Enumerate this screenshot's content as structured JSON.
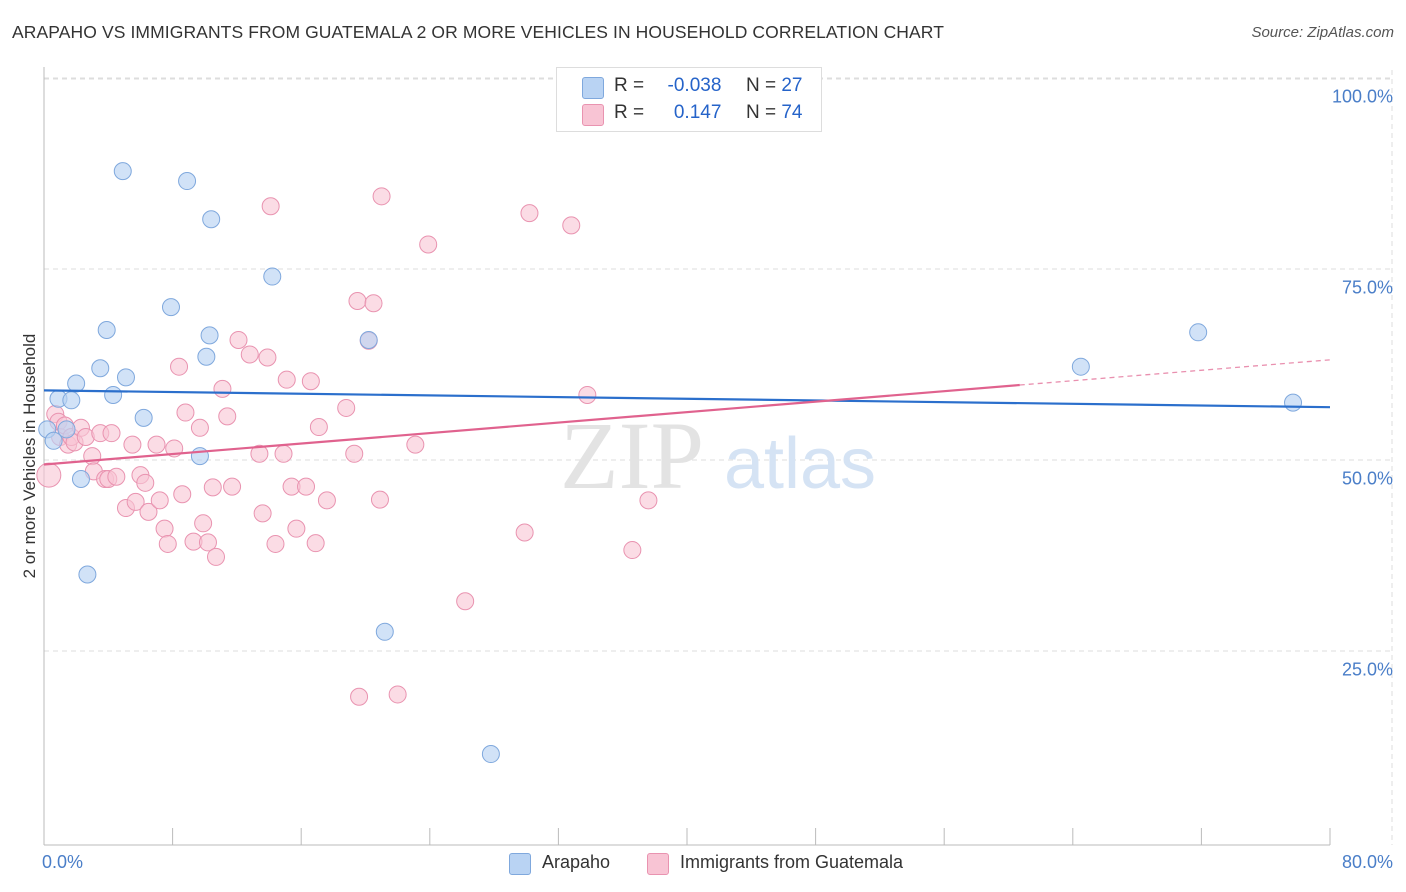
{
  "header": {
    "title": "ARAPAHO VS IMMIGRANTS FROM GUATEMALA 2 OR MORE VEHICLES IN HOUSEHOLD CORRELATION CHART",
    "source": "Source: ZipAtlas.com"
  },
  "watermark": {
    "zip": "ZIP",
    "atlas": "atlas"
  },
  "legend": {
    "series1": {
      "r_label": "R =",
      "r_value": "-0.038",
      "n_label": "N =",
      "n_value": "27"
    },
    "series2": {
      "r_label": "R =",
      "r_value": "0.147",
      "n_label": "N =",
      "n_value": "74"
    }
  },
  "bottom_legend": {
    "series1": "Arapaho",
    "series2": "Immigrants from Guatemala"
  },
  "colors": {
    "blue_fill": "#b9d3f3",
    "blue_stroke": "#7fa8dd",
    "blue_line": "#2b6fcc",
    "pink_fill": "#f8c4d4",
    "pink_stroke": "#e993b0",
    "pink_line": "#e0628e",
    "grid": "#dddddd",
    "axis_text": "#4a7ec8"
  },
  "chart_data": {
    "type": "scatter",
    "title": "ARAPAHO VS IMMIGRANTS FROM GUATEMALA 2 OR MORE VEHICLES IN HOUSEHOLD CORRELATION CHART",
    "xlabel": "",
    "ylabel": "2 or more Vehicles in Household",
    "xlim": [
      0,
      80
    ],
    "ylim": [
      0,
      105
    ],
    "x_tick_labels": [
      "0.0%",
      "80.0%"
    ],
    "y_ticks": [
      25,
      50,
      75,
      100
    ],
    "y_tick_labels": [
      "25.0%",
      "50.0%",
      "75.0%",
      "100.0%"
    ],
    "grid": true,
    "series": [
      {
        "name": "Arapaho",
        "color": "blue",
        "r": -0.038,
        "n": 27,
        "trend": {
          "x": [
            0,
            80
          ],
          "y": [
            61.6,
            59.4
          ]
        },
        "points": [
          [
            0.2,
            56.5
          ],
          [
            0.6,
            55
          ],
          [
            0.9,
            60.5
          ],
          [
            1.7,
            60.3
          ],
          [
            1.4,
            56.5
          ],
          [
            2.0,
            62.5
          ],
          [
            2.3,
            50
          ],
          [
            2.7,
            37.5
          ],
          [
            3.5,
            64.5
          ],
          [
            3.9,
            69.5
          ],
          [
            4.3,
            61
          ],
          [
            5.1,
            63.3
          ],
          [
            4.9,
            90.3
          ],
          [
            6.2,
            58
          ],
          [
            7.9,
            72.5
          ],
          [
            8.9,
            89
          ],
          [
            9.7,
            53
          ],
          [
            10.1,
            66
          ],
          [
            10.3,
            68.8
          ],
          [
            10.4,
            84
          ],
          [
            14.2,
            76.5
          ],
          [
            20.2,
            68.2
          ],
          [
            21.2,
            30
          ],
          [
            27.8,
            14
          ],
          [
            64.5,
            64.7
          ],
          [
            71.8,
            69.2
          ],
          [
            77.7,
            60
          ]
        ]
      },
      {
        "name": "Immigrants from Guatemala",
        "color": "pink",
        "r": 0.147,
        "n": 74,
        "trend": {
          "x": [
            0,
            60.7
          ],
          "y": [
            51.9,
            62.3
          ]
        },
        "trend_ext": {
          "x": [
            60.7,
            80
          ],
          "y": [
            62.3,
            65.6
          ]
        },
        "points": [
          [
            0.3,
            50.5
          ],
          [
            0.7,
            58.5
          ],
          [
            0.9,
            57.5
          ],
          [
            1.0,
            55.5
          ],
          [
            1.3,
            57
          ],
          [
            1.5,
            54.5
          ],
          [
            1.7,
            55.5
          ],
          [
            1.9,
            54.8
          ],
          [
            2.3,
            56.7
          ],
          [
            2.6,
            55.5
          ],
          [
            3.0,
            53
          ],
          [
            3.1,
            51
          ],
          [
            3.5,
            56
          ],
          [
            3.8,
            50
          ],
          [
            4.0,
            50
          ],
          [
            4.2,
            56
          ],
          [
            4.5,
            50.3
          ],
          [
            5.1,
            46.2
          ],
          [
            5.5,
            54.5
          ],
          [
            5.7,
            47
          ],
          [
            6.0,
            50.5
          ],
          [
            6.3,
            49.5
          ],
          [
            6.5,
            45.7
          ],
          [
            7.0,
            54.5
          ],
          [
            7.2,
            47.2
          ],
          [
            7.5,
            43.5
          ],
          [
            7.7,
            41.5
          ],
          [
            8.1,
            54
          ],
          [
            8.4,
            64.7
          ],
          [
            8.6,
            48
          ],
          [
            8.8,
            58.7
          ],
          [
            9.3,
            41.8
          ],
          [
            9.7,
            56.7
          ],
          [
            9.9,
            44.2
          ],
          [
            10.2,
            41.7
          ],
          [
            10.5,
            48.9
          ],
          [
            10.7,
            39.8
          ],
          [
            11.1,
            61.8
          ],
          [
            11.4,
            58.2
          ],
          [
            11.7,
            49
          ],
          [
            12.1,
            68.2
          ],
          [
            12.8,
            66.3
          ],
          [
            13.4,
            53.3
          ],
          [
            13.6,
            45.5
          ],
          [
            13.9,
            65.9
          ],
          [
            14.1,
            85.7
          ],
          [
            14.4,
            41.5
          ],
          [
            14.9,
            53.3
          ],
          [
            15.1,
            63
          ],
          [
            15.4,
            49
          ],
          [
            15.7,
            43.5
          ],
          [
            16.3,
            49
          ],
          [
            16.6,
            62.8
          ],
          [
            16.9,
            41.6
          ],
          [
            17.1,
            56.8
          ],
          [
            17.6,
            47.2
          ],
          [
            18.8,
            59.3
          ],
          [
            19.3,
            53.3
          ],
          [
            19.5,
            73.3
          ],
          [
            19.6,
            21.5
          ],
          [
            20.2,
            68.1
          ],
          [
            20.5,
            73
          ],
          [
            20.9,
            47.3
          ],
          [
            21.0,
            87
          ],
          [
            22.0,
            21.8
          ],
          [
            23.1,
            54.5
          ],
          [
            23.9,
            80.7
          ],
          [
            26.2,
            34
          ],
          [
            29.9,
            43
          ],
          [
            30.2,
            84.8
          ],
          [
            32.8,
            83.2
          ],
          [
            33.8,
            61
          ],
          [
            36.6,
            40.7
          ],
          [
            37.6,
            47.2
          ]
        ]
      }
    ]
  }
}
